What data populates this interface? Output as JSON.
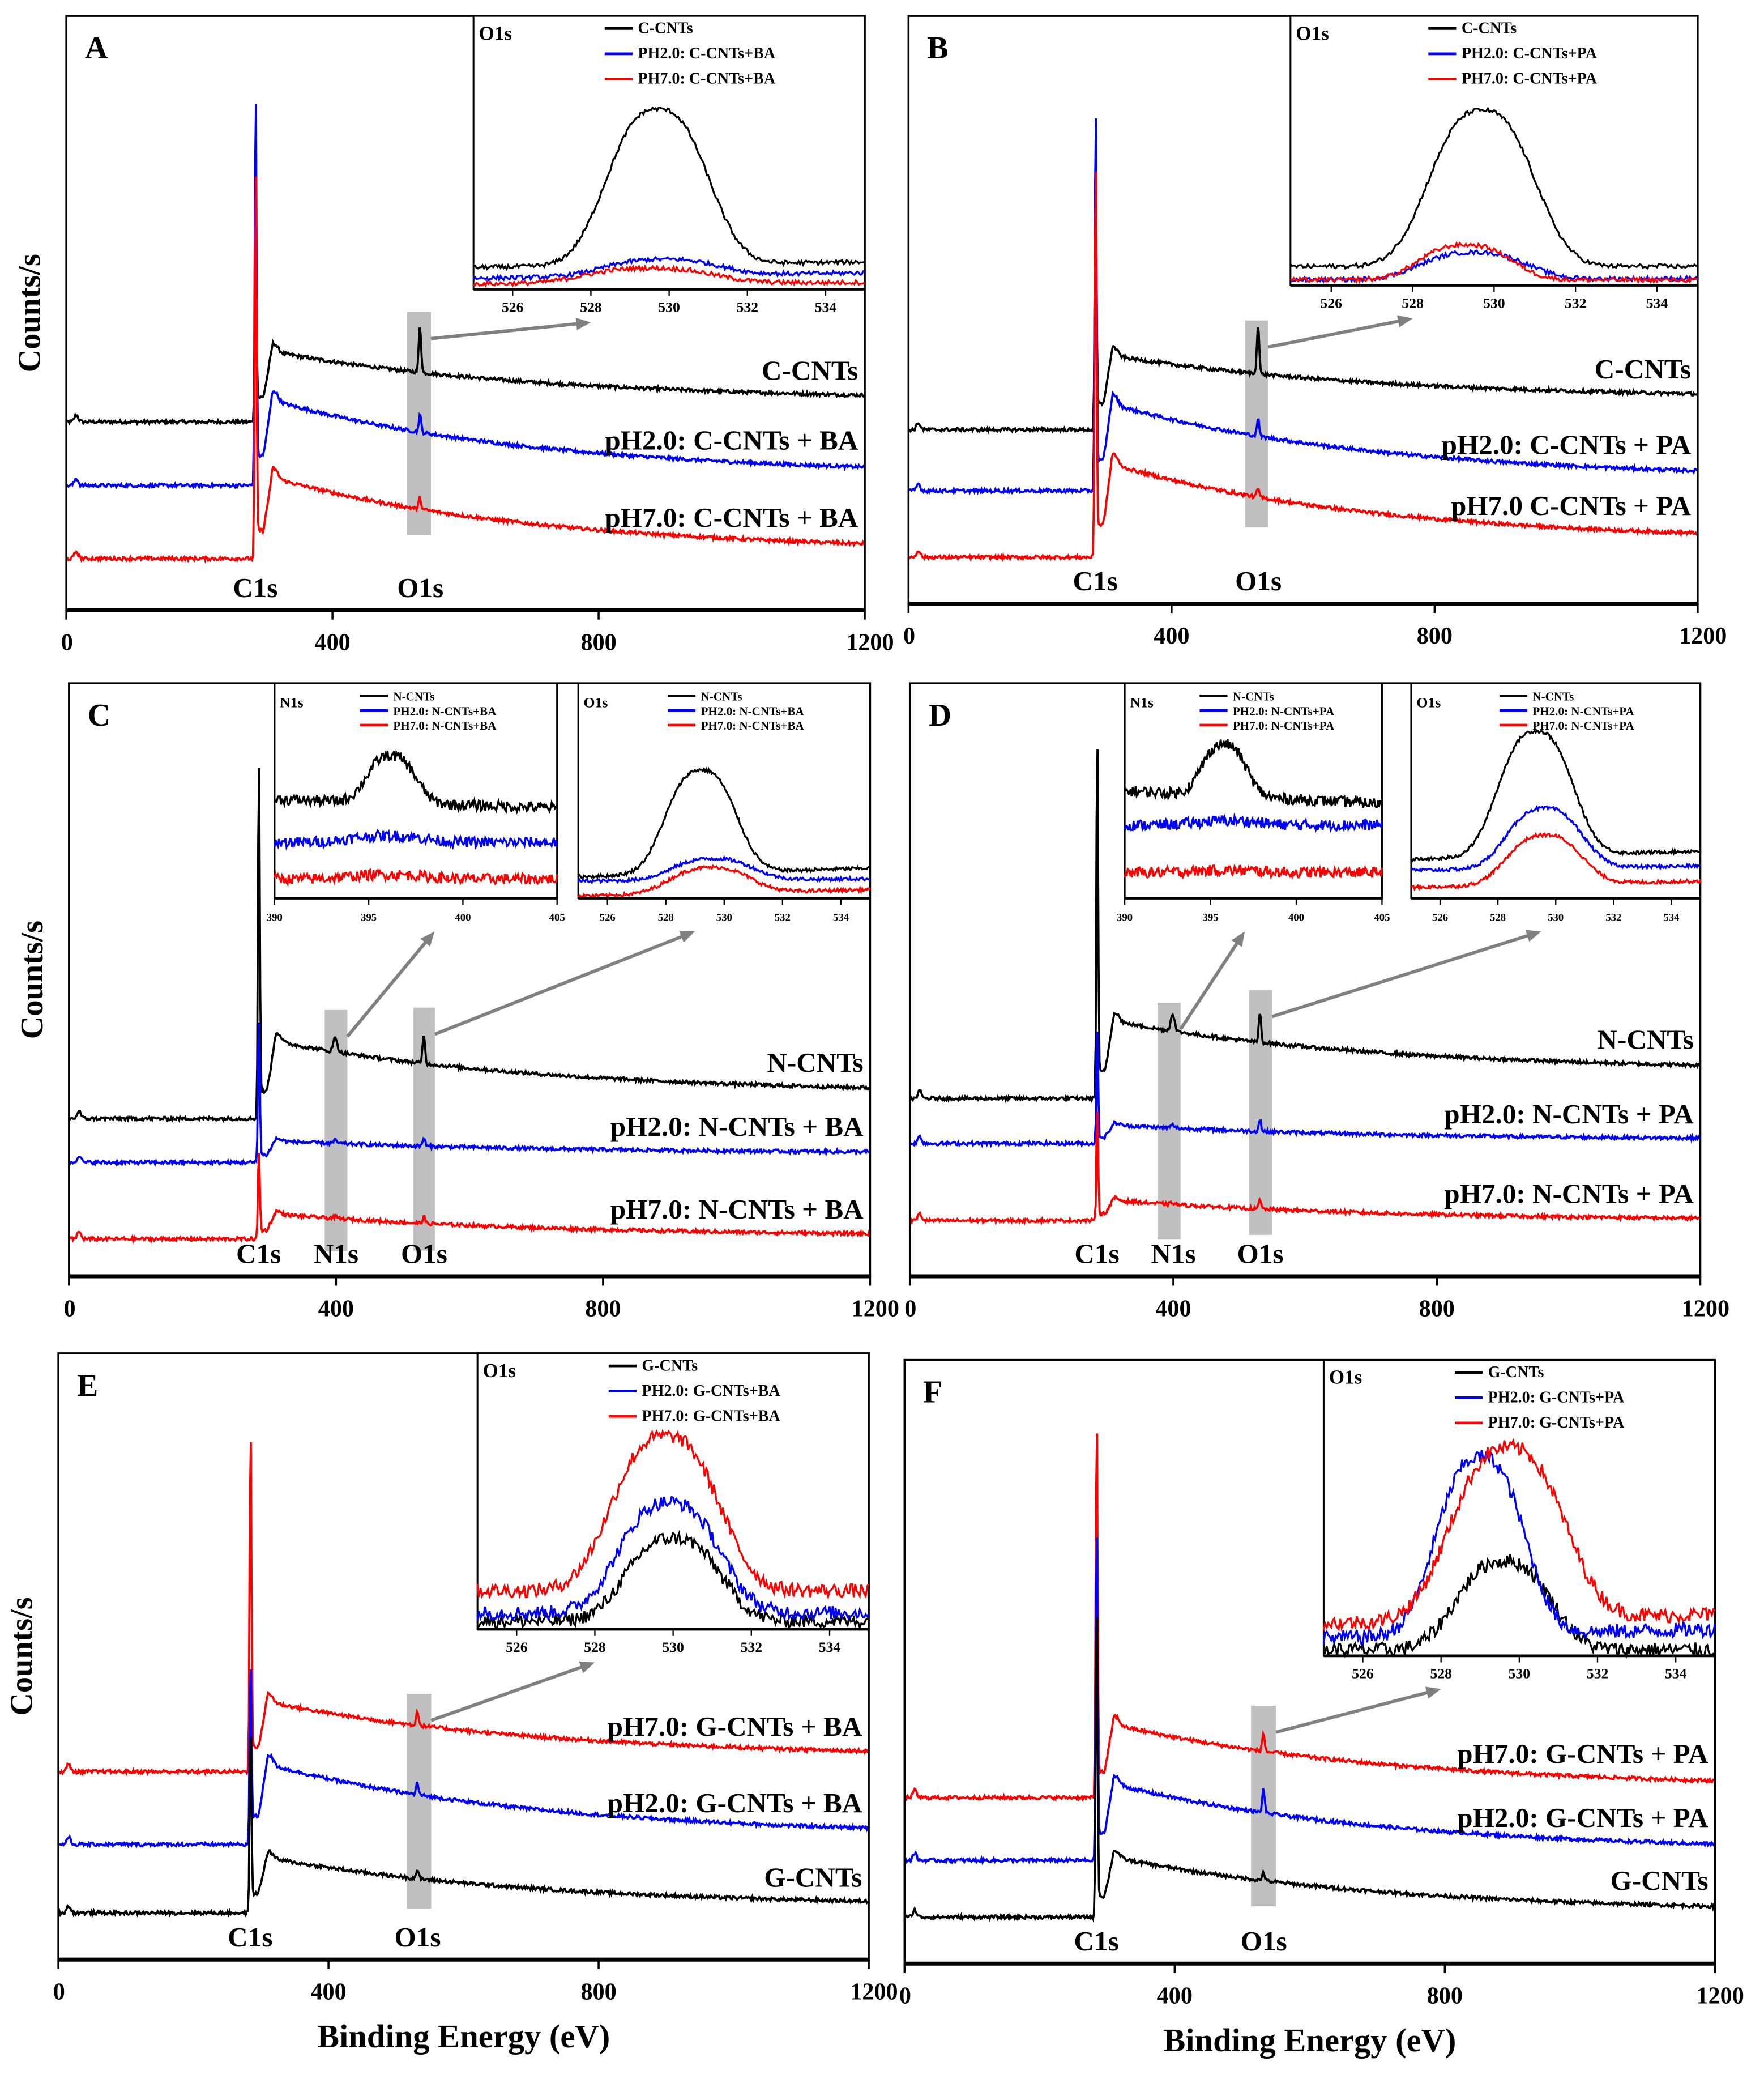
{
  "figure": {
    "ylabel": "Counts/s",
    "xlabel": "Binding Energy (eV)"
  },
  "chart_data": [
    {
      "panel": "A",
      "type": "line",
      "xlim": [
        0,
        1200
      ],
      "xticks": [
        0,
        400,
        800,
        1200
      ],
      "ylim": [
        0,
        100
      ],
      "ylabel": "Counts/s",
      "xlabel": "",
      "peak_labels": [
        {
          "text": "C1s",
          "x": 284
        },
        {
          "text": "O1s",
          "x": 532
        }
      ],
      "highlight_regions": [
        [
          512,
          548
        ]
      ],
      "series": [
        {
          "label": "C-CNTs",
          "color": "#000000",
          "pre": 31.7,
          "post": 43.5,
          "end": 36.2,
          "spike": 60,
          "o1s": 8,
          "n1s": 0
        },
        {
          "label": "pH2.0: C-CNTs + BA",
          "color": "#0000ff",
          "pre": 21,
          "post": 35.3,
          "end": 24.1,
          "spike": 90.4,
          "o1s": 3,
          "n1s": 0
        },
        {
          "label": "pH7.0: C-CNTs + BA",
          "color": "#ff0000",
          "pre": 8.7,
          "post": 22.3,
          "end": 11.2,
          "spike": 78,
          "o1s": 2,
          "n1s": 0
        }
      ],
      "insets": [
        {
          "title": "O1s",
          "xlim": [
            525,
            535
          ],
          "xticks": [
            526,
            528,
            530,
            532,
            534
          ],
          "arrow_from_region": 0,
          "arrow_to": 528,
          "series": [
            {
              "legend": "C-CNTs",
              "color": "#000000",
              "baseL": 8,
              "baseR": 10,
              "peak": 57,
              "center": 529.7,
              "width": 1.6
            },
            {
              "legend": "PH2.0: C-CNTs+BA",
              "color": "#0000ff",
              "baseL": 4,
              "baseR": 6,
              "peak": 6,
              "center": 529.8,
              "width": 1.8
            },
            {
              "legend": "PH7.0: C-CNTs+BA",
              "color": "#ff0000",
              "baseL": 2,
              "baseR": 2.5,
              "peak": 5.5,
              "center": 529.5,
              "width": 2
            }
          ]
        }
      ]
    },
    {
      "panel": "B",
      "type": "line",
      "xlim": [
        0,
        1200
      ],
      "xticks": [
        0,
        400,
        800,
        1200
      ],
      "ylim": [
        0,
        100
      ],
      "ylabel": "",
      "xlabel": "",
      "peak_labels": [
        {
          "text": "C1s",
          "x": 284
        },
        {
          "text": "O1s",
          "x": 532
        }
      ],
      "highlight_regions": [
        [
          512,
          547
        ]
      ],
      "series": [
        {
          "label": "C-CNTs",
          "color": "#000000",
          "pre": 29.6,
          "post": 42.2,
          "end": 35.7,
          "spike": 75,
          "o1s": 8.5,
          "n1s": 0
        },
        {
          "label": "pH2.0: C-CNTs + PA",
          "color": "#0000ff",
          "pre": 19.2,
          "post": 33.9,
          "end": 22.6,
          "spike": 87.4,
          "o1s": 3,
          "n1s": 0
        },
        {
          "label": "pH7.0 C-CNTs + PA",
          "color": "#ff0000",
          "pre": 7.9,
          "post": 23.7,
          "end": 12,
          "spike": 79,
          "o1s": 1.5,
          "n1s": 0
        }
      ],
      "insets": [
        {
          "title": "O1s",
          "xlim": [
            525,
            535
          ],
          "xticks": [
            526,
            528,
            530,
            532,
            534
          ],
          "arrow_from_region": 0,
          "arrow_to": 528,
          "series": [
            {
              "legend": "C-CNTs",
              "color": "#000000",
              "baseL": 7,
              "baseR": 7,
              "peak": 58,
              "center": 529.7,
              "width": 1.6
            },
            {
              "legend": "PH2.0: C-CNTs+PA",
              "color": "#0000ff",
              "baseL": 2,
              "baseR": 2.5,
              "peak": 10,
              "center": 529.5,
              "width": 1.6
            },
            {
              "legend": "PH7.0: C-CNTs+PA",
              "color": "#ff0000",
              "baseL": 2,
              "baseR": 2,
              "peak": 13,
              "center": 529.3,
              "width": 1.4
            }
          ]
        }
      ]
    },
    {
      "panel": "C",
      "type": "line",
      "xlim": [
        0,
        1200
      ],
      "xticks": [
        0,
        400,
        800,
        1200
      ],
      "ylim": [
        0,
        100
      ],
      "ylabel": "Counts/s",
      "xlabel": "",
      "peak_labels": [
        {
          "text": "C1s",
          "x": 284
        },
        {
          "text": "N1s",
          "x": 400
        },
        {
          "text": "O1s",
          "x": 532
        }
      ],
      "highlight_regions": [
        [
          383,
          417
        ],
        [
          516,
          548
        ]
      ],
      "series": [
        {
          "label": "N-CNTs",
          "color": "#000000",
          "pre": 26.6,
          "post": 39.6,
          "end": 31.8,
          "spike": 90.6,
          "o1s": 5,
          "n1s": 2.5
        },
        {
          "label": "pH2.0: N-CNTs + BA",
          "color": "#0000ff",
          "pre": 19.2,
          "post": 22.8,
          "end": 21,
          "spike": 45,
          "o1s": 1.5,
          "n1s": 0.5
        },
        {
          "label": "pH7.0: N-CNTs + BA",
          "color": "#ff0000",
          "pre": 6.3,
          "post": 10.5,
          "end": 7.2,
          "spike": 22,
          "o1s": 1.2,
          "n1s": 0.3
        }
      ],
      "insets": [
        {
          "title": "N1s",
          "xlim": [
            390,
            405
          ],
          "xticks": [
            390,
            395,
            400,
            405
          ],
          "arrow_from_region": 0,
          "arrow_to": 398.5,
          "noisy": true,
          "series": [
            {
              "legend": "N-CNTs",
              "color": "#000000",
              "baseL": 46,
              "baseR": 42,
              "peak": 22,
              "center": 396.2,
              "width": 1.6
            },
            {
              "legend": "PH2.0: N-CNTs+BA",
              "color": "#0000ff",
              "baseL": 26,
              "baseR": 26,
              "peak": 3,
              "center": 396,
              "width": 2.5
            },
            {
              "legend": "PH7.0: N-CNTs+BA",
              "color": "#ff0000",
              "baseL": 9,
              "baseR": 9,
              "peak": 2,
              "center": 396,
              "width": 2.5
            }
          ]
        },
        {
          "title": "O1s",
          "xlim": [
            525,
            535
          ],
          "xticks": [
            526,
            528,
            530,
            532,
            534
          ],
          "arrow_from_region": 1,
          "arrow_to": 529,
          "series": [
            {
              "legend": "N-CNTs",
              "color": "#000000",
              "baseL": 10,
              "baseR": 14,
              "peak": 48,
              "center": 529.2,
              "width": 1.5
            },
            {
              "legend": "PH2.0: N-CNTs+BA",
              "color": "#0000ff",
              "baseL": 8,
              "baseR": 9,
              "peak": 10,
              "center": 529.6,
              "width": 1.7
            },
            {
              "legend": "PH7.0: N-CNTs+BA",
              "color": "#ff0000",
              "baseL": 1,
              "baseR": 4,
              "peak": 12,
              "center": 529.5,
              "width": 1.7
            }
          ]
        }
      ]
    },
    {
      "panel": "D",
      "type": "line",
      "xlim": [
        0,
        1200
      ],
      "xticks": [
        0,
        400,
        800,
        1200
      ],
      "ylim": [
        0,
        100
      ],
      "ylabel": "",
      "xlabel": "",
      "peak_labels": [
        {
          "text": "C1s",
          "x": 284
        },
        {
          "text": "N1s",
          "x": 400
        },
        {
          "text": "O1s",
          "x": 532
        }
      ],
      "highlight_regions": [
        [
          376,
          411
        ],
        [
          515,
          550
        ]
      ],
      "series": [
        {
          "label": "N-CNTs",
          "color": "#000000",
          "pre": 30,
          "post": 43,
          "end": 35.6,
          "spike": 93.7,
          "o1s": 5,
          "n1s": 3
        },
        {
          "label": "pH2.0: N-CNTs + PA",
          "color": "#0000ff",
          "pre": 22.4,
          "post": 25.5,
          "end": 23.3,
          "spike": 43,
          "o1s": 2,
          "n1s": 0.5
        },
        {
          "label": "pH7.0: N-CNTs + PA",
          "color": "#ff0000",
          "pre": 9.4,
          "post": 12.8,
          "end": 9.8,
          "spike": 29.5,
          "o1s": 1.5,
          "n1s": 0.3
        }
      ],
      "insets": [
        {
          "title": "N1s",
          "xlim": [
            390,
            405
          ],
          "xticks": [
            390,
            395,
            400,
            405
          ],
          "arrow_from_region": 0,
          "arrow_to": 397,
          "noisy": true,
          "series": [
            {
              "legend": "N-CNTs",
              "color": "#000000",
              "baseL": 50,
              "baseR": 44,
              "peak": 24,
              "center": 395.8,
              "width": 1.6
            },
            {
              "legend": "PH2.0: N-CNTs+PA",
              "color": "#0000ff",
              "baseL": 34,
              "baseR": 34,
              "peak": 2,
              "center": 396,
              "width": 2.5
            },
            {
              "legend": "PH7.0: N-CNTs+PA",
              "color": "#ff0000",
              "baseL": 12,
              "baseR": 12,
              "peak": 1,
              "center": 396,
              "width": 2.5
            }
          ]
        },
        {
          "title": "O1s",
          "xlim": [
            525,
            535
          ],
          "xticks": [
            526,
            528,
            530,
            532,
            534
          ],
          "arrow_from_region": 1,
          "arrow_to": 529.5,
          "series": [
            {
              "legend": "N-CNTs",
              "color": "#000000",
              "baseL": 18,
              "baseR": 22,
              "peak": 58,
              "center": 529.3,
              "width": 1.6
            },
            {
              "legend": "PH2.0: N-CNTs+PA",
              "color": "#0000ff",
              "baseL": 13,
              "baseR": 15,
              "peak": 28,
              "center": 529.6,
              "width": 1.6
            },
            {
              "legend": "PH7.0: N-CNTs+PA",
              "color": "#ff0000",
              "baseL": 5,
              "baseR": 8,
              "peak": 23,
              "center": 529.6,
              "width": 1.6
            }
          ]
        }
      ]
    },
    {
      "panel": "E",
      "type": "line",
      "xlim": [
        0,
        1200
      ],
      "xticks": [
        0,
        400,
        800,
        1200
      ],
      "ylim": [
        0,
        100
      ],
      "ylabel": "Counts/s",
      "xlabel": "Binding Energy (eV)",
      "peak_labels": [
        {
          "text": "C1s",
          "x": 284
        },
        {
          "text": "O1s",
          "x": 532
        }
      ],
      "highlight_regions": [
        [
          516,
          552
        ]
      ],
      "series": [
        {
          "label": "pH7.0: G-CNTs + BA",
          "color": "#ff0000",
          "pre": 31,
          "post": 42.5,
          "end": 34.4,
          "spike": 89.5,
          "o1s": 2.5,
          "n1s": 0
        },
        {
          "label": "pH2.0: G-CNTs + BA",
          "color": "#0000ff",
          "pre": 19,
          "post": 32.2,
          "end": 21.7,
          "spike": 50,
          "o1s": 2,
          "n1s": 0
        },
        {
          "label": "G-CNTs",
          "color": "#000000",
          "pre": 7.7,
          "post": 16.8,
          "end": 9.6,
          "spike": 38.7,
          "o1s": 1.5,
          "n1s": 0
        }
      ],
      "insets": [
        {
          "title": "O1s",
          "xlim": [
            525,
            535
          ],
          "xticks": [
            526,
            528,
            530,
            532,
            534
          ],
          "arrow_from_region": 0,
          "arrow_to": 528,
          "noisy": true,
          "series": [
            {
              "legend": "G-CNTs",
              "color": "#000000",
              "baseL": 3,
              "baseR": 3,
              "peak": 30,
              "center": 530,
              "width": 1.5
            },
            {
              "legend": "PH2.0: G-CNTs+BA",
              "color": "#0000ff",
              "baseL": 6,
              "baseR": 6,
              "peak": 40,
              "center": 529.9,
              "width": 1.6
            },
            {
              "legend": "PH7.0: G-CNTs+BA",
              "color": "#ff0000",
              "baseL": 14,
              "baseR": 14,
              "peak": 56,
              "center": 529.8,
              "width": 1.7
            }
          ]
        }
      ]
    },
    {
      "panel": "F",
      "type": "line",
      "xlim": [
        0,
        1200
      ],
      "xticks": [
        0,
        400,
        800,
        1200
      ],
      "ylim": [
        0,
        100
      ],
      "ylabel": "",
      "xlabel": "Binding Energy (eV)",
      "peak_labels": [
        {
          "text": "C1s",
          "x": 284
        },
        {
          "text": "O1s",
          "x": 532
        }
      ],
      "highlight_regions": [
        [
          513,
          550
        ]
      ],
      "series": [
        {
          "label": "pH7.0: G-CNTs + PA",
          "color": "#ff0000",
          "pre": 27.5,
          "post": 39.6,
          "end": 30.3,
          "spike": 92.7,
          "o1s": 3,
          "n1s": 0
        },
        {
          "label": "pH2.0:  G-CNTs + PA",
          "color": "#0000ff",
          "pre": 17.1,
          "post": 29.7,
          "end": 19.8,
          "spike": 74.7,
          "o1s": 4,
          "n1s": 0
        },
        {
          "label": "G-CNTs",
          "color": "#000000",
          "pre": 7.7,
          "post": 17.6,
          "end": 9.5,
          "spike": 61.5,
          "o1s": 1.5,
          "n1s": 0
        }
      ],
      "insets": [
        {
          "title": "O1s",
          "xlim": [
            525,
            535
          ],
          "xticks": [
            526,
            528,
            530,
            532,
            534
          ],
          "arrow_from_region": 0,
          "arrow_to": 528,
          "noisy": true,
          "series": [
            {
              "legend": "G-CNTs",
              "color": "#000000",
              "baseL": 2,
              "baseR": 2,
              "peak": 30,
              "center": 529.6,
              "width": 1.5
            },
            {
              "legend": "PH2.0: G-CNTs+PA",
              "color": "#0000ff",
              "baseL": 6,
              "baseR": 9,
              "peak": 60,
              "center": 529.0,
              "width": 1.4
            },
            {
              "legend": "PH7.0: G-CNTs+PA",
              "color": "#ff0000",
              "baseL": 11,
              "baseR": 14,
              "peak": 58,
              "center": 529.7,
              "width": 1.8
            }
          ]
        }
      ]
    }
  ]
}
